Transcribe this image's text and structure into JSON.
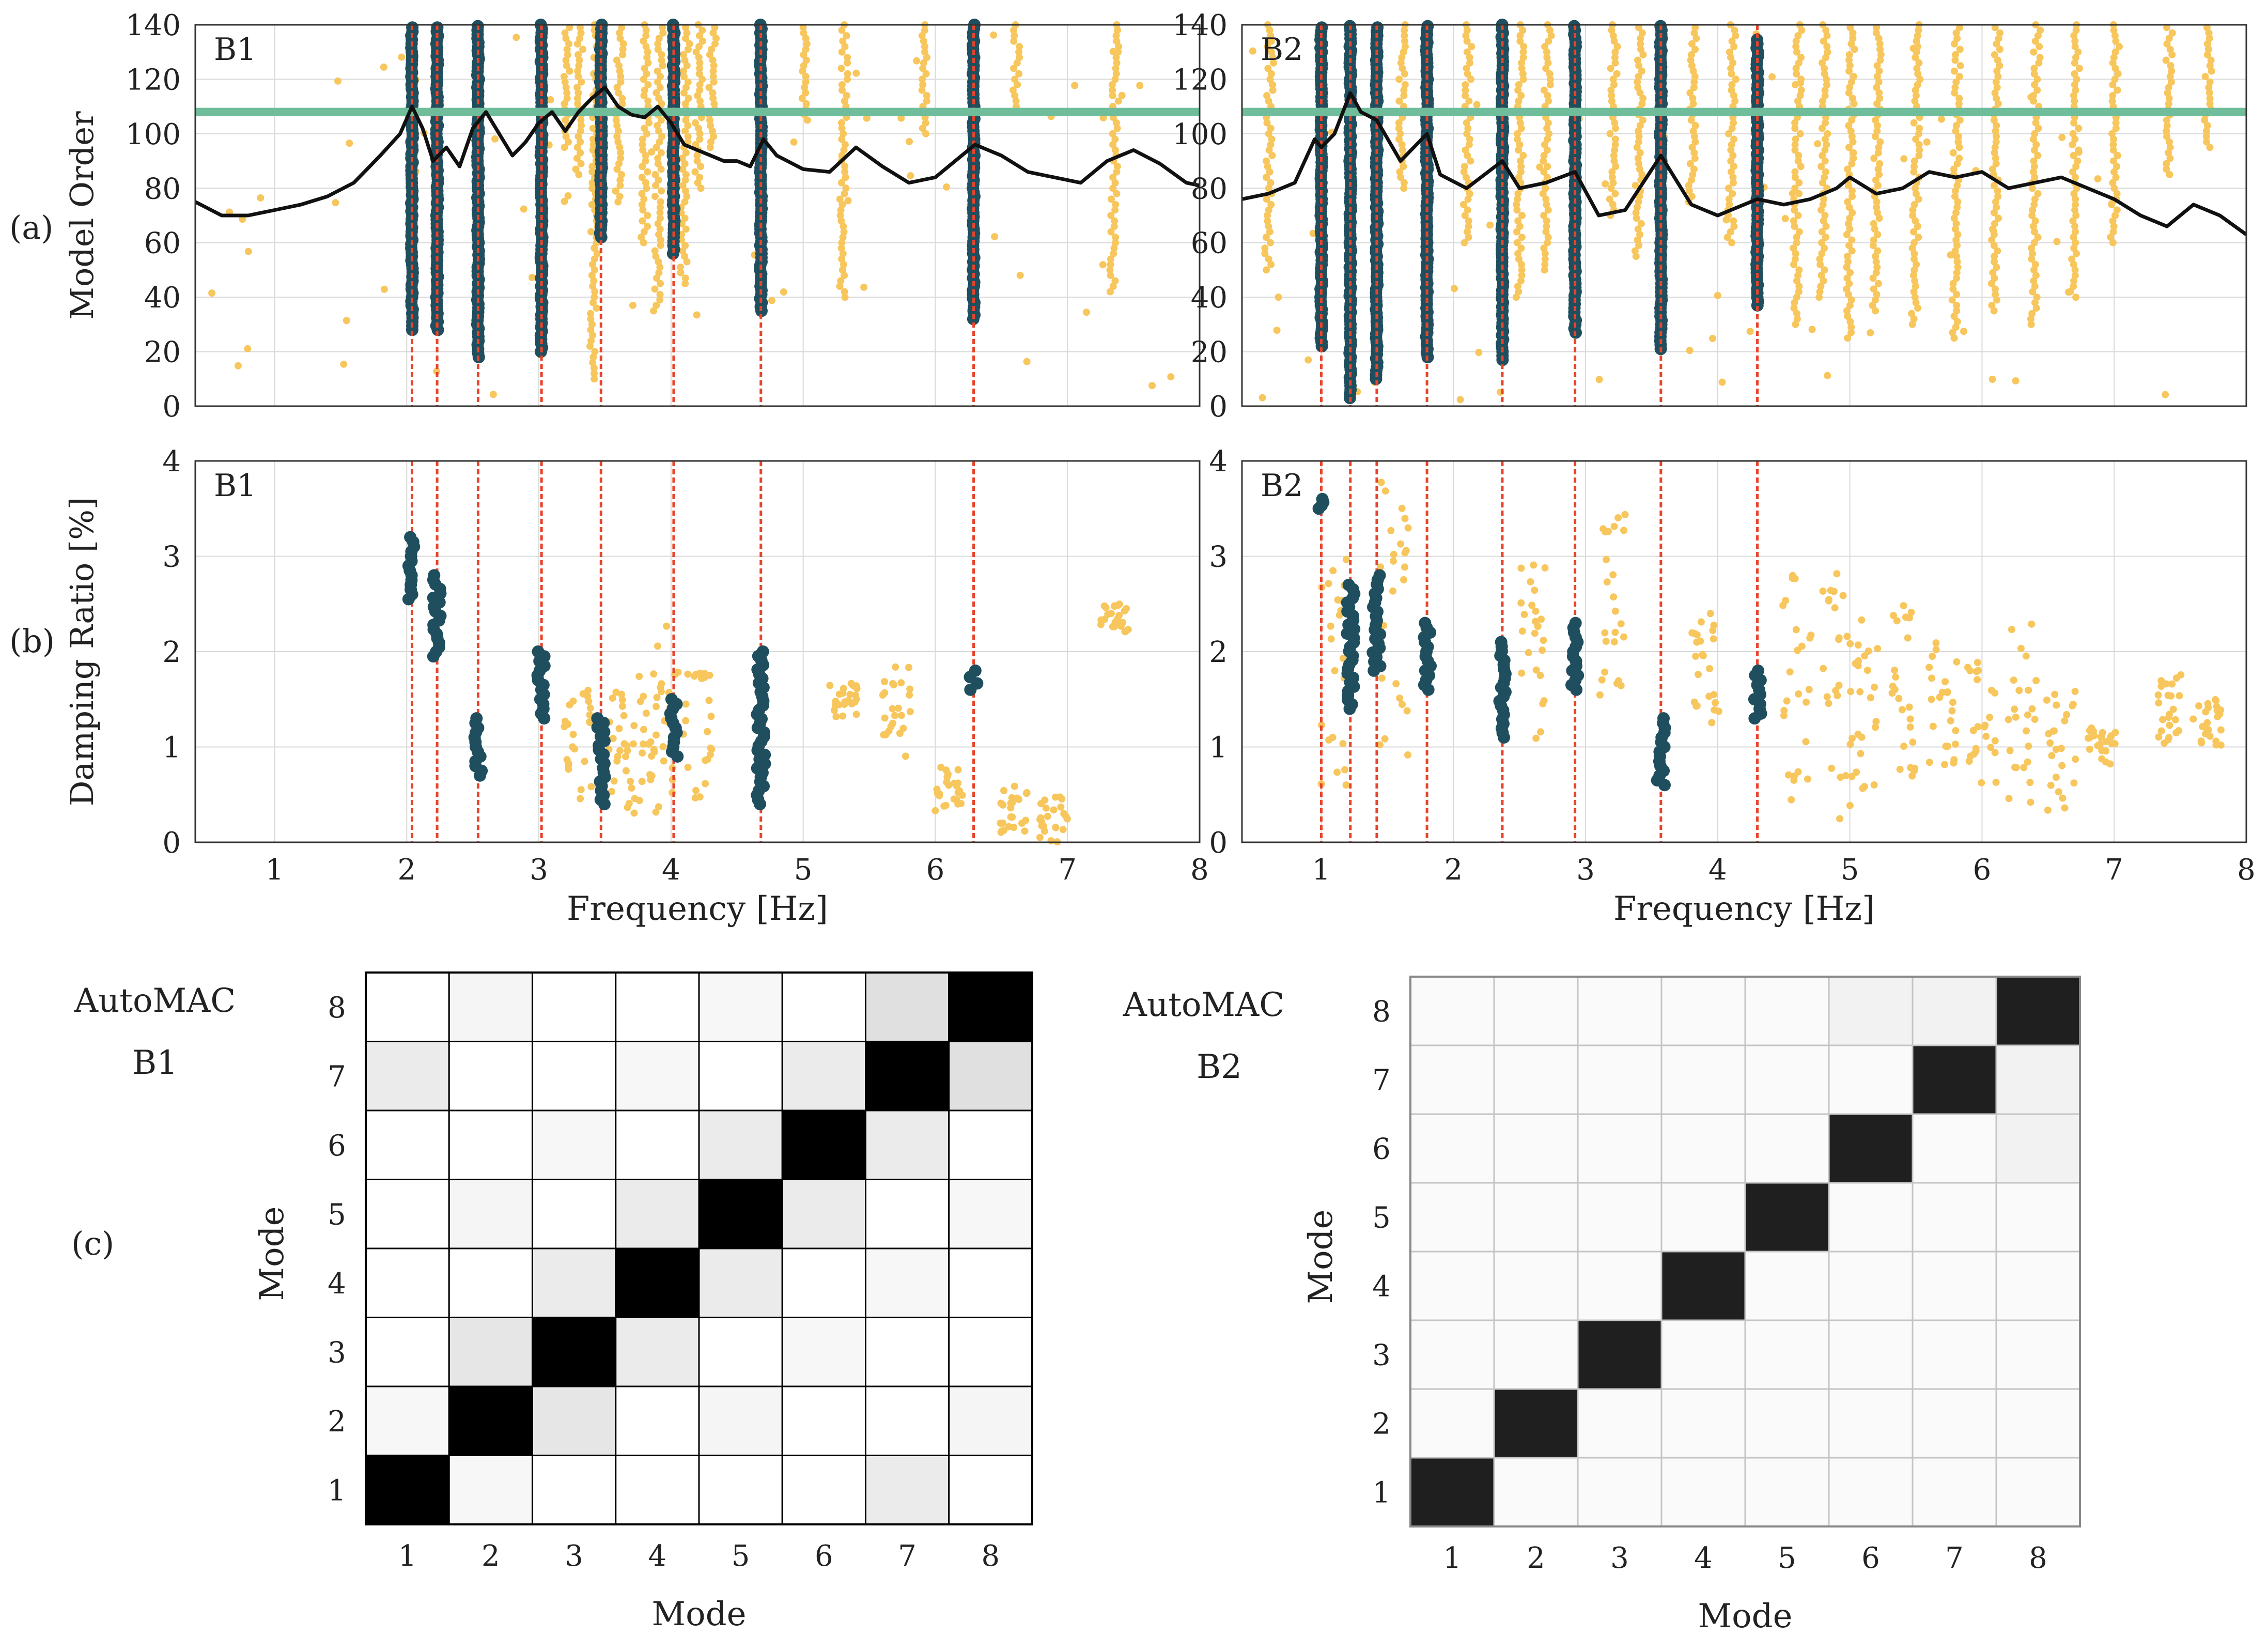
{
  "figure": {
    "panel_labels": {
      "a": "(a)",
      "b": "(b)",
      "c": "(c)"
    },
    "colors": {
      "stable_pole": "#1f4e5e",
      "unstable_pole": "#f7c65c",
      "selected_line": "#e8442a",
      "psd_curve": "#111111",
      "threshold_line": "#6fbd9b",
      "grid": "#d9d9d9"
    }
  },
  "chart_data": [
    {
      "id": "stab-B1",
      "type": "scatter",
      "title": "B1",
      "xlabel": "Frequency [Hz]",
      "ylabel": "Model Order",
      "xlim": [
        0.4,
        8
      ],
      "ylim": [
        0,
        140
      ],
      "xticks": [
        1,
        2,
        3,
        4,
        5,
        6,
        7,
        8
      ],
      "yticks": [
        0,
        20,
        40,
        60,
        80,
        100,
        120,
        140
      ],
      "selected_frequencies": [
        2.04,
        2.23,
        2.54,
        3.02,
        3.47,
        4.02,
        4.68,
        6.29
      ],
      "threshold_order": 108,
      "stable_columns": [
        {
          "f": 2.04,
          "from": 28,
          "to": 140
        },
        {
          "f": 2.23,
          "from": 28,
          "to": 140
        },
        {
          "f": 2.54,
          "from": 18,
          "to": 140
        },
        {
          "f": 3.02,
          "from": 20,
          "to": 140
        },
        {
          "f": 3.47,
          "from": 62,
          "to": 140
        },
        {
          "f": 4.02,
          "from": 56,
          "to": 140
        },
        {
          "f": 4.68,
          "from": 35,
          "to": 140
        },
        {
          "f": 6.29,
          "from": 32,
          "to": 140
        }
      ],
      "unstable_columns": [
        {
          "f": 3.2,
          "from": 95,
          "to": 140
        },
        {
          "f": 3.3,
          "from": 85,
          "to": 140
        },
        {
          "f": 3.42,
          "from": 10,
          "to": 140
        },
        {
          "f": 3.6,
          "from": 75,
          "to": 140
        },
        {
          "f": 3.8,
          "from": 60,
          "to": 140
        },
        {
          "f": 3.9,
          "from": 35,
          "to": 140
        },
        {
          "f": 4.1,
          "from": 45,
          "to": 140
        },
        {
          "f": 4.2,
          "from": 80,
          "to": 140
        },
        {
          "f": 4.3,
          "from": 95,
          "to": 140
        },
        {
          "f": 5.0,
          "from": 105,
          "to": 140
        },
        {
          "f": 5.3,
          "from": 40,
          "to": 140
        },
        {
          "f": 5.9,
          "from": 100,
          "to": 140
        },
        {
          "f": 6.6,
          "from": 110,
          "to": 140
        },
        {
          "f": 7.35,
          "from": 42,
          "to": 140
        }
      ],
      "psd_curve": {
        "f": [
          0.4,
          0.6,
          0.8,
          1.0,
          1.2,
          1.4,
          1.6,
          1.8,
          1.95,
          2.04,
          2.12,
          2.2,
          2.3,
          2.4,
          2.5,
          2.6,
          2.7,
          2.8,
          2.9,
          3.0,
          3.1,
          3.2,
          3.3,
          3.4,
          3.5,
          3.6,
          3.7,
          3.8,
          3.9,
          4.0,
          4.1,
          4.2,
          4.3,
          4.4,
          4.5,
          4.6,
          4.7,
          4.8,
          5.0,
          5.2,
          5.4,
          5.6,
          5.8,
          6.0,
          6.2,
          6.3,
          6.5,
          6.7,
          6.9,
          7.1,
          7.3,
          7.5,
          7.7,
          7.9,
          8.0
        ],
        "order": [
          75,
          70,
          70,
          72,
          74,
          77,
          82,
          92,
          100,
          110,
          102,
          90,
          95,
          88,
          102,
          108,
          100,
          92,
          97,
          104,
          108,
          101,
          108,
          113,
          117,
          110,
          107,
          106,
          110,
          104,
          96,
          94,
          92,
          90,
          90,
          88,
          98,
          92,
          87,
          86,
          95,
          88,
          82,
          84,
          92,
          96,
          92,
          86,
          84,
          82,
          90,
          94,
          89,
          82,
          81
        ]
      }
    },
    {
      "id": "stab-B2",
      "type": "scatter",
      "title": "B2",
      "xlabel": "Frequency [Hz]",
      "ylabel": "",
      "xlim": [
        0.4,
        8
      ],
      "ylim": [
        0,
        140
      ],
      "xticks": [
        1,
        2,
        3,
        4,
        5,
        6,
        7,
        8
      ],
      "yticks": [
        0,
        20,
        40,
        60,
        80,
        100,
        120,
        140
      ],
      "selected_frequencies": [
        1.0,
        1.22,
        1.42,
        1.8,
        2.37,
        2.92,
        3.57,
        4.3
      ],
      "threshold_order": 108,
      "stable_columns": [
        {
          "f": 1.0,
          "from": 22,
          "to": 140
        },
        {
          "f": 1.22,
          "from": 3,
          "to": 140
        },
        {
          "f": 1.42,
          "from": 10,
          "to": 140
        },
        {
          "f": 1.8,
          "from": 18,
          "to": 140
        },
        {
          "f": 2.37,
          "from": 17,
          "to": 140
        },
        {
          "f": 2.92,
          "from": 27,
          "to": 140
        },
        {
          "f": 3.57,
          "from": 21,
          "to": 140
        },
        {
          "f": 4.3,
          "from": 37,
          "to": 135
        }
      ],
      "unstable_columns": [
        {
          "f": 0.6,
          "from": 50,
          "to": 140
        },
        {
          "f": 1.6,
          "from": 80,
          "to": 140
        },
        {
          "f": 2.1,
          "from": 60,
          "to": 140
        },
        {
          "f": 2.5,
          "from": 40,
          "to": 140
        },
        {
          "f": 2.7,
          "from": 50,
          "to": 140
        },
        {
          "f": 3.2,
          "from": 70,
          "to": 140
        },
        {
          "f": 3.4,
          "from": 55,
          "to": 140
        },
        {
          "f": 3.8,
          "from": 75,
          "to": 140
        },
        {
          "f": 4.1,
          "from": 60,
          "to": 140
        },
        {
          "f": 4.6,
          "from": 30,
          "to": 140
        },
        {
          "f": 4.8,
          "from": 40,
          "to": 140
        },
        {
          "f": 5.0,
          "from": 25,
          "to": 140
        },
        {
          "f": 5.2,
          "from": 35,
          "to": 140
        },
        {
          "f": 5.5,
          "from": 30,
          "to": 140
        },
        {
          "f": 5.8,
          "from": 25,
          "to": 140
        },
        {
          "f": 6.1,
          "from": 35,
          "to": 140
        },
        {
          "f": 6.4,
          "from": 30,
          "to": 140
        },
        {
          "f": 6.7,
          "from": 40,
          "to": 140
        },
        {
          "f": 7.0,
          "from": 60,
          "to": 140
        },
        {
          "f": 7.4,
          "from": 85,
          "to": 140
        },
        {
          "f": 7.7,
          "from": 95,
          "to": 140
        }
      ],
      "psd_curve": {
        "f": [
          0.4,
          0.6,
          0.8,
          0.95,
          1.0,
          1.1,
          1.22,
          1.3,
          1.42,
          1.6,
          1.8,
          1.9,
          2.1,
          2.37,
          2.5,
          2.7,
          2.92,
          3.1,
          3.3,
          3.57,
          3.8,
          4.0,
          4.3,
          4.5,
          4.7,
          4.9,
          5.0,
          5.2,
          5.4,
          5.6,
          5.8,
          6.0,
          6.2,
          6.4,
          6.6,
          6.8,
          7.0,
          7.2,
          7.4,
          7.6,
          7.8,
          8.0
        ],
        "order": [
          76,
          78,
          82,
          98,
          95,
          100,
          115,
          108,
          105,
          90,
          100,
          85,
          80,
          90,
          80,
          82,
          86,
          70,
          72,
          92,
          74,
          70,
          76,
          74,
          76,
          80,
          84,
          78,
          80,
          86,
          84,
          86,
          80,
          82,
          84,
          80,
          76,
          70,
          66,
          74,
          70,
          63
        ]
      }
    },
    {
      "id": "damp-B1",
      "type": "scatter",
      "title": "B1",
      "xlabel": "Frequency [Hz]",
      "ylabel": "Damping Ratio [%]",
      "xlim": [
        0.4,
        8
      ],
      "ylim": [
        0,
        4
      ],
      "xticks": [
        1,
        2,
        3,
        4,
        5,
        6,
        7,
        8
      ],
      "yticks": [
        0,
        1,
        2,
        3,
        4
      ],
      "selected_frequencies": [
        2.04,
        2.23,
        2.54,
        3.02,
        3.47,
        4.02,
        4.68,
        6.29
      ],
      "stable_clusters": [
        {
          "f": 2.04,
          "from": 2.55,
          "to": 3.2
        },
        {
          "f": 2.23,
          "from": 1.95,
          "to": 2.8
        },
        {
          "f": 2.54,
          "from": 0.7,
          "to": 1.3
        },
        {
          "f": 3.02,
          "from": 1.3,
          "to": 2.0
        },
        {
          "f": 3.47,
          "from": 0.4,
          "to": 1.3
        },
        {
          "f": 4.02,
          "from": 0.9,
          "to": 1.5
        },
        {
          "f": 4.68,
          "from": 0.4,
          "to": 2.0
        },
        {
          "f": 6.29,
          "from": 1.6,
          "to": 1.8
        }
      ],
      "unstable_clusters": [
        {
          "f": 3.3,
          "from": 0.4,
          "to": 1.6
        },
        {
          "f": 3.6,
          "from": 0.3,
          "to": 1.7
        },
        {
          "f": 3.8,
          "from": 0.3,
          "to": 1.8
        },
        {
          "f": 3.95,
          "from": 0.4,
          "to": 2.6
        },
        {
          "f": 4.2,
          "from": 0.4,
          "to": 1.8
        },
        {
          "f": 5.3,
          "from": 1.3,
          "to": 1.7
        },
        {
          "f": 5.7,
          "from": 0.8,
          "to": 1.9
        },
        {
          "f": 6.1,
          "from": 0.3,
          "to": 0.8
        },
        {
          "f": 6.6,
          "from": 0.1,
          "to": 0.6
        },
        {
          "f": 6.9,
          "from": 0.0,
          "to": 0.5
        },
        {
          "f": 7.35,
          "from": 2.2,
          "to": 2.5
        }
      ]
    },
    {
      "id": "damp-B2",
      "type": "scatter",
      "title": "B2",
      "xlabel": "Frequency [Hz]",
      "ylabel": "",
      "xlim": [
        0.4,
        8
      ],
      "ylim": [
        0,
        4
      ],
      "xticks": [
        1,
        2,
        3,
        4,
        5,
        6,
        7,
        8
      ],
      "yticks": [
        0,
        1,
        2,
        3,
        4
      ],
      "selected_frequencies": [
        1.0,
        1.22,
        1.42,
        1.8,
        2.37,
        2.92,
        3.57,
        4.3
      ],
      "stable_clusters": [
        {
          "f": 1.0,
          "from": 3.5,
          "to": 3.6
        },
        {
          "f": 1.22,
          "from": 1.4,
          "to": 2.7
        },
        {
          "f": 1.42,
          "from": 1.8,
          "to": 2.8
        },
        {
          "f": 1.8,
          "from": 1.6,
          "to": 2.3
        },
        {
          "f": 2.37,
          "from": 1.1,
          "to": 2.1
        },
        {
          "f": 2.92,
          "from": 1.6,
          "to": 2.3
        },
        {
          "f": 3.57,
          "from": 0.6,
          "to": 1.3
        },
        {
          "f": 4.3,
          "from": 1.3,
          "to": 1.8
        }
      ],
      "unstable_clusters": [
        {
          "f": 1.1,
          "from": 0.5,
          "to": 3.0
        },
        {
          "f": 1.55,
          "from": 0.8,
          "to": 3.8
        },
        {
          "f": 2.6,
          "from": 1.0,
          "to": 3.0
        },
        {
          "f": 3.2,
          "from": 1.5,
          "to": 3.5
        },
        {
          "f": 3.9,
          "from": 1.2,
          "to": 2.4
        },
        {
          "f": 4.6,
          "from": 0.4,
          "to": 2.8
        },
        {
          "f": 4.9,
          "from": 0.2,
          "to": 3.0
        },
        {
          "f": 5.1,
          "from": 0.5,
          "to": 2.6
        },
        {
          "f": 5.4,
          "from": 0.5,
          "to": 2.5
        },
        {
          "f": 5.7,
          "from": 0.8,
          "to": 2.2
        },
        {
          "f": 6.0,
          "from": 0.6,
          "to": 2.0
        },
        {
          "f": 6.3,
          "from": 0.4,
          "to": 2.3
        },
        {
          "f": 6.6,
          "from": 0.3,
          "to": 1.6
        },
        {
          "f": 6.9,
          "from": 0.8,
          "to": 1.2
        },
        {
          "f": 7.4,
          "from": 1.0,
          "to": 1.8
        },
        {
          "f": 7.7,
          "from": 1.0,
          "to": 1.5
        }
      ]
    },
    {
      "id": "mac-B1",
      "type": "heatmap",
      "title": "AutoMAC",
      "subtitle": "B1",
      "xlabel": "Mode",
      "ylabel": "Mode",
      "labels": [
        1,
        2,
        3,
        4,
        5,
        6,
        7,
        8
      ],
      "matrix": [
        [
          1.0,
          0.03,
          0.0,
          0.0,
          0.0,
          0.0,
          0.08,
          0.0
        ],
        [
          0.03,
          1.0,
          0.1,
          0.0,
          0.04,
          0.0,
          0.0,
          0.04
        ],
        [
          0.0,
          0.1,
          1.0,
          0.08,
          0.0,
          0.03,
          0.0,
          0.0
        ],
        [
          0.0,
          0.0,
          0.08,
          1.0,
          0.08,
          0.0,
          0.03,
          0.0
        ],
        [
          0.0,
          0.04,
          0.0,
          0.08,
          1.0,
          0.08,
          0.0,
          0.03
        ],
        [
          0.0,
          0.0,
          0.03,
          0.0,
          0.08,
          1.0,
          0.08,
          0.0
        ],
        [
          0.08,
          0.0,
          0.0,
          0.03,
          0.0,
          0.08,
          1.0,
          0.12
        ],
        [
          0.0,
          0.04,
          0.0,
          0.0,
          0.03,
          0.0,
          0.12,
          1.0
        ]
      ]
    },
    {
      "id": "mac-B2",
      "type": "heatmap",
      "title": "AutoMAC",
      "subtitle": "B2",
      "xlabel": "Mode",
      "ylabel": "Mode",
      "labels": [
        1,
        2,
        3,
        4,
        5,
        6,
        7,
        8
      ],
      "matrix": [
        [
          0.88,
          0.02,
          0.02,
          0.02,
          0.02,
          0.02,
          0.02,
          0.02
        ],
        [
          0.02,
          0.88,
          0.02,
          0.02,
          0.02,
          0.02,
          0.02,
          0.02
        ],
        [
          0.02,
          0.02,
          0.88,
          0.02,
          0.02,
          0.02,
          0.02,
          0.02
        ],
        [
          0.02,
          0.02,
          0.02,
          0.88,
          0.02,
          0.02,
          0.02,
          0.02
        ],
        [
          0.02,
          0.02,
          0.02,
          0.02,
          0.88,
          0.02,
          0.02,
          0.02
        ],
        [
          0.02,
          0.02,
          0.02,
          0.02,
          0.02,
          0.88,
          0.02,
          0.05
        ],
        [
          0.02,
          0.02,
          0.02,
          0.02,
          0.02,
          0.02,
          0.88,
          0.05
        ],
        [
          0.02,
          0.02,
          0.02,
          0.02,
          0.02,
          0.05,
          0.05,
          0.88
        ]
      ]
    }
  ]
}
